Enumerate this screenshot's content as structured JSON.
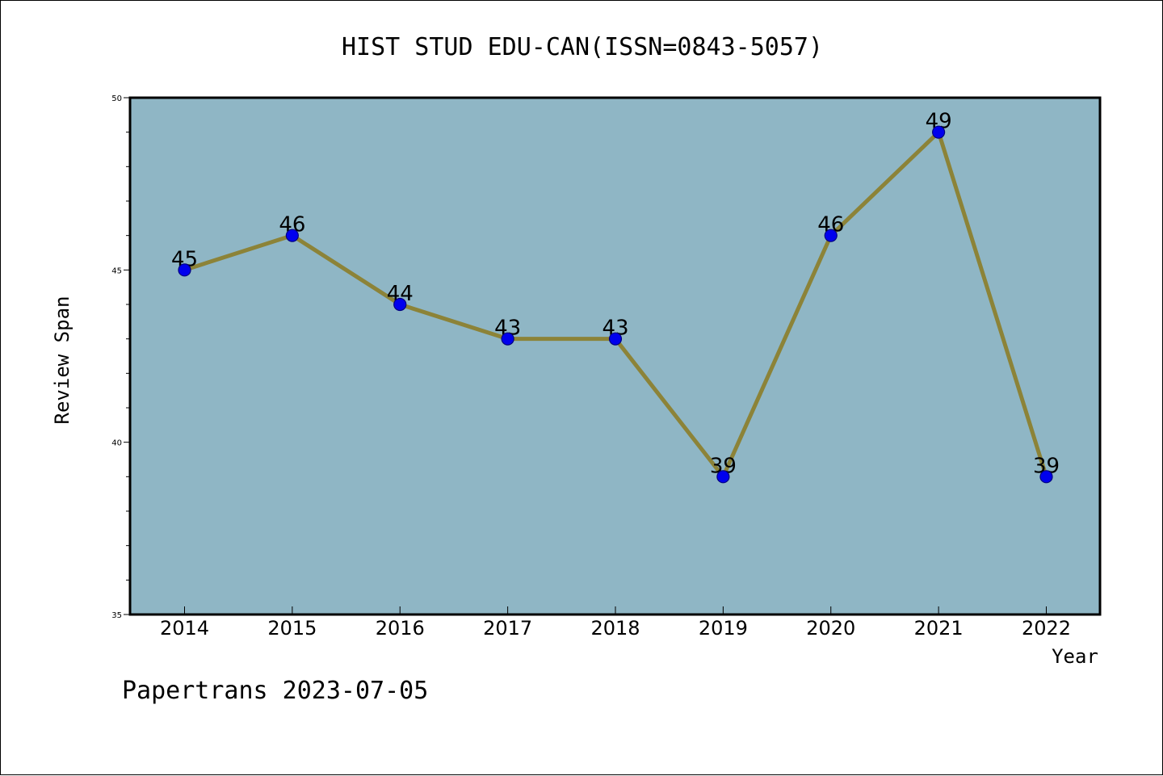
{
  "chart_data": {
    "type": "line",
    "title": "HIST STUD EDU-CAN(ISSN=0843-5057)",
    "xlabel": "Year",
    "ylabel": "Review Span",
    "categories": [
      "2014",
      "2015",
      "2016",
      "2017",
      "2018",
      "2019",
      "2020",
      "2021",
      "2022"
    ],
    "values": [
      45,
      46,
      44,
      43,
      43,
      39,
      46,
      49,
      39
    ],
    "data_labels": [
      "45",
      "46",
      "44",
      "43",
      "43",
      "39",
      "46",
      "49",
      "39"
    ],
    "ylim": [
      35,
      50
    ],
    "yticks": [
      "35",
      "40",
      "45",
      "50"
    ],
    "grid": false,
    "legend": "none",
    "colors": {
      "plot_background": "#8fb6c5",
      "line": "#8c8338",
      "marker": "#0000ee",
      "marker_edge": "#000080"
    }
  },
  "footer": {
    "text": "Papertrans 2023-07-05"
  }
}
